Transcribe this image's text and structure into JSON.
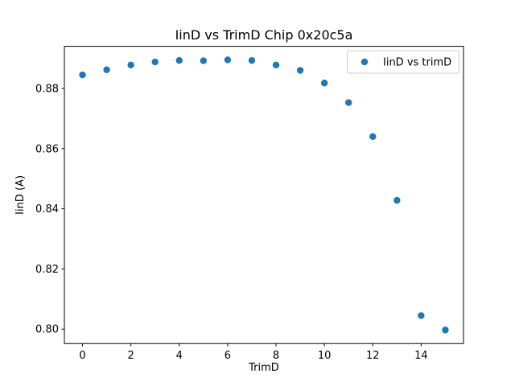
{
  "chart_data": {
    "type": "scatter",
    "title": "IinD vs TrimD Chip 0x20c5a",
    "xlabel": "TrimD",
    "ylabel": "IinD (A)",
    "series": [
      {
        "name": "IinD vs trimD",
        "marker": "circle",
        "color": "#1f77b4",
        "x": [
          0,
          1,
          2,
          3,
          4,
          5,
          6,
          7,
          8,
          9,
          10,
          11,
          12,
          13,
          14,
          15
        ],
        "y": [
          0.8845,
          0.8862,
          0.8878,
          0.8888,
          0.8893,
          0.8892,
          0.8895,
          0.8893,
          0.8878,
          0.886,
          0.8818,
          0.8753,
          0.864,
          0.8428,
          0.8045,
          0.7997
        ]
      }
    ],
    "xlim": [
      -0.75,
      15.75
    ],
    "ylim": [
      0.7952,
      0.894
    ],
    "xticks": [
      0,
      2,
      4,
      6,
      8,
      10,
      12,
      14
    ],
    "yticks": [
      0.8,
      0.82,
      0.84,
      0.86,
      0.88
    ],
    "ytick_labels": [
      "0.80",
      "0.82",
      "0.84",
      "0.86",
      "0.88"
    ],
    "grid": false,
    "legend_position": "upper right",
    "background_color": "#ffffff",
    "spine_color": "#000000"
  }
}
